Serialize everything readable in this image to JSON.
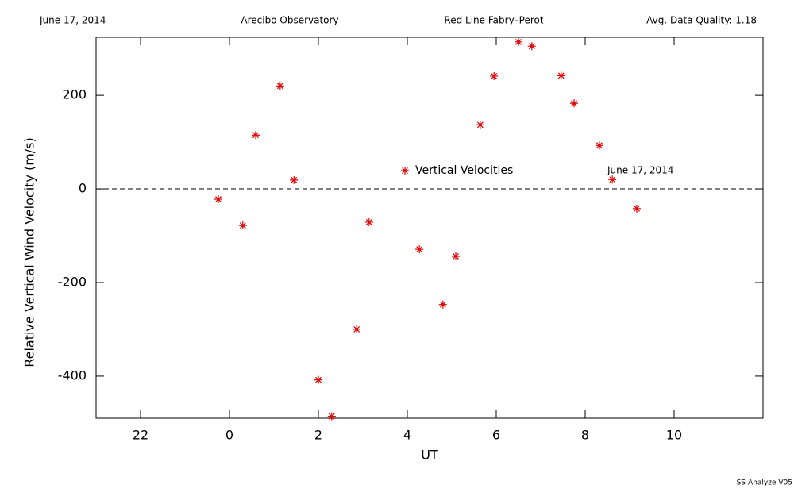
{
  "chart_data": {
    "type": "scatter",
    "header": [
      "June 17, 2014",
      "Arecibo Observatory",
      "Red Line Fabry–Perot",
      "Avg. Data Quality: 1.18"
    ],
    "x_label": "UT",
    "y_label": "Relative Vertical Wind Velocity (m/s)",
    "annotation": "June 17, 2014",
    "footer": "SS-Analyze V05",
    "xlim": [
      -3,
      12
    ],
    "ylim": [
      -490,
      324
    ],
    "xticks": [
      {
        "value": -2,
        "label": "22"
      },
      0,
      2,
      4,
      6,
      8,
      10
    ],
    "yticks": [
      -400,
      -200,
      0,
      200
    ],
    "hline": 0,
    "series": [
      {
        "name": "Vertical Velocities",
        "color": "#e00000",
        "x": [
          -0.25,
          0.3,
          0.59,
          1.14,
          1.45,
          2.0,
          2.3,
          2.86,
          3.14,
          4.27,
          4.8,
          5.09,
          5.64,
          5.95,
          6.5,
          6.8,
          7.46,
          7.75,
          8.32,
          8.61,
          9.16
        ],
        "values": [
          -22,
          -78,
          115,
          220,
          19,
          -408,
          -486,
          -300,
          -71,
          -129,
          -247,
          -144,
          137,
          241,
          314,
          305,
          242,
          183,
          93,
          20,
          -42
        ]
      }
    ]
  }
}
